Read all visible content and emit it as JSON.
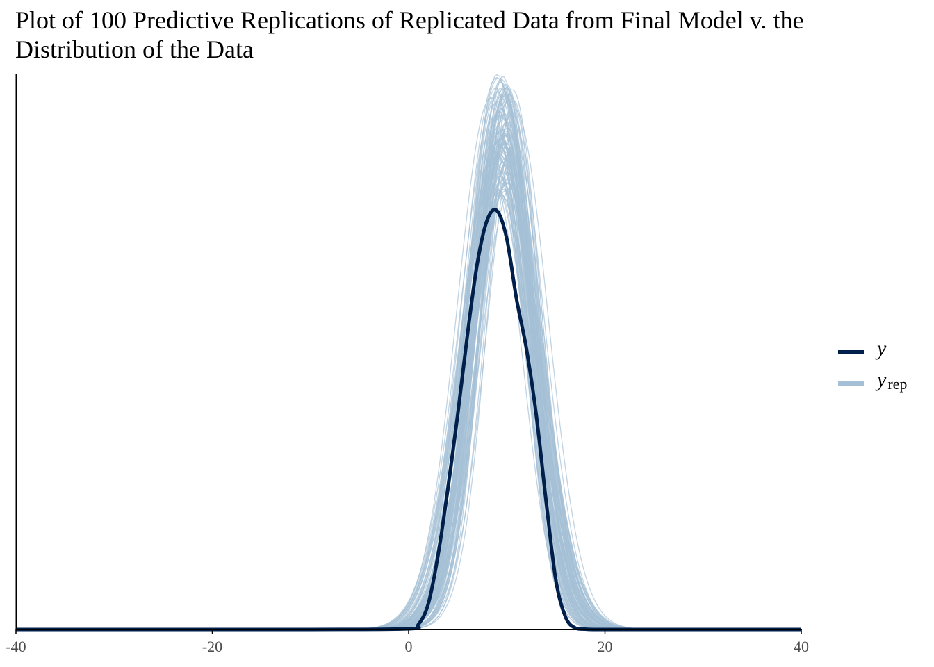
{
  "chart_data": {
    "type": "line",
    "title": "Plot of 100 Predictive Replications of Replicated Data from Final Model v. the Distribution of the Data",
    "xlabel": "",
    "ylabel": "",
    "xlim": [
      -40,
      40
    ],
    "ylim": [
      0,
      0.16
    ],
    "x_ticks": [
      "-40",
      "-20",
      "0",
      "20",
      "40"
    ],
    "grid": false,
    "legend_position": "right",
    "legend": [
      {
        "label": "y",
        "subscript": "",
        "color": "#011f4b"
      },
      {
        "label": "y",
        "subscript": "rep",
        "color": "#a5c0d6"
      }
    ],
    "series": [
      {
        "name": "y",
        "color": "#011f4b",
        "x": [
          -40,
          -10,
          0,
          1,
          2,
          3,
          4,
          5,
          6,
          7,
          8,
          9,
          10,
          11,
          12,
          13,
          14,
          15,
          16,
          17,
          18,
          20,
          30,
          40
        ],
        "values": [
          0,
          0,
          0.0002,
          0.0015,
          0.0074,
          0.0215,
          0.0406,
          0.0619,
          0.0852,
          0.1056,
          0.118,
          0.1207,
          0.1126,
          0.0951,
          0.0809,
          0.0619,
          0.0371,
          0.0142,
          0.0035,
          0.0004,
          0.0001,
          0,
          0,
          0
        ]
      },
      {
        "name": "y_rep",
        "color": "#a5c0d6",
        "draws": 100,
        "mean_range": [
          8.9,
          10.2
        ],
        "sd_range": [
          2.7,
          3.8
        ],
        "peak_density_range": [
          0.125,
          0.16
        ]
      }
    ]
  }
}
